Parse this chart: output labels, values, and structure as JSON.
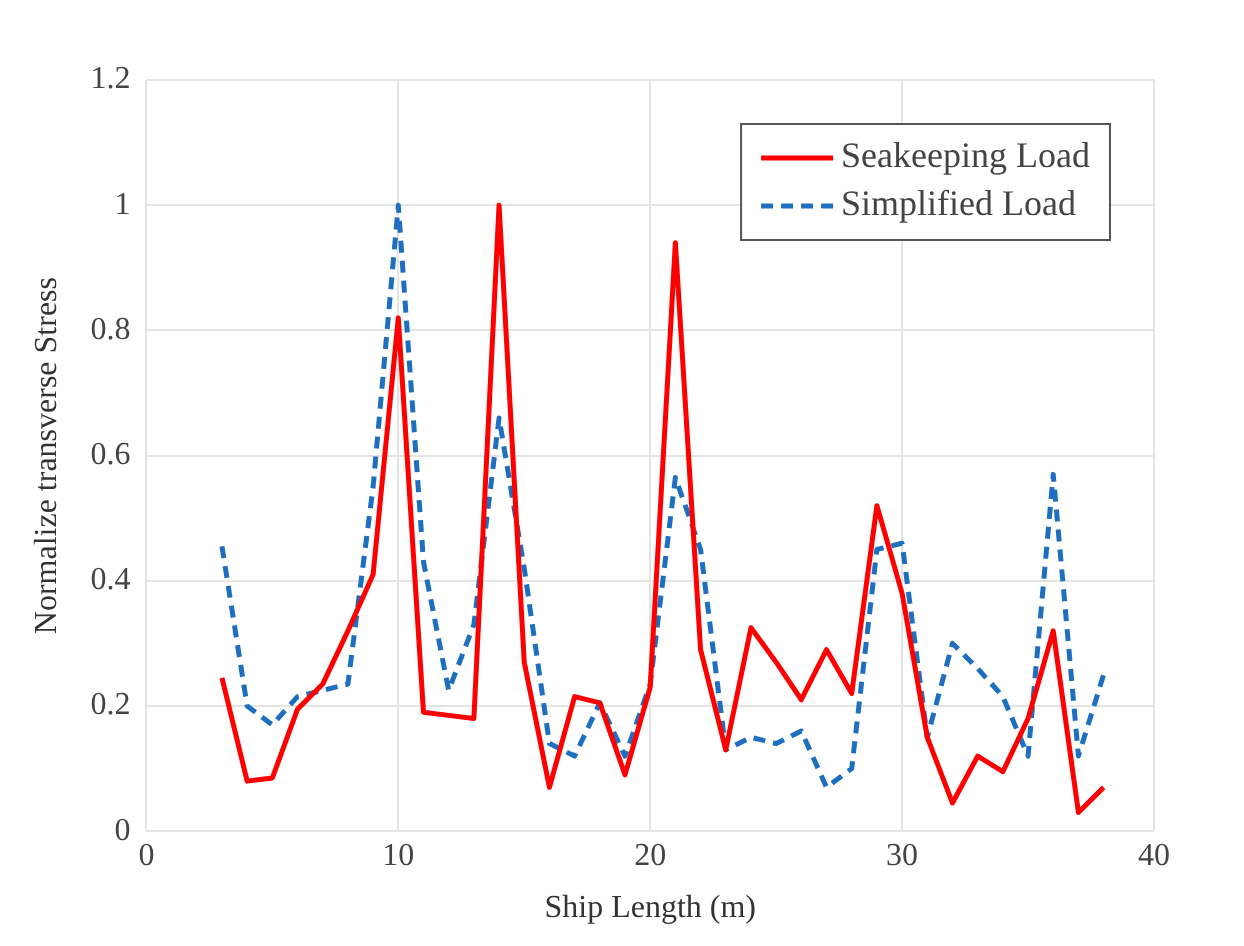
{
  "chart_data": {
    "type": "line",
    "xlabel": "Ship Length (m)",
    "ylabel": "Normalize transverse Stress",
    "x": [
      3,
      4,
      5,
      6,
      7,
      8,
      9,
      10,
      11,
      12,
      13,
      14,
      15,
      16,
      17,
      18,
      19,
      20,
      21,
      22,
      23,
      24,
      25,
      26,
      27,
      28,
      29,
      30,
      31,
      32,
      33,
      34,
      35,
      36,
      37,
      38
    ],
    "series": [
      {
        "name": "Seakeeping Load",
        "color": "#ff0000",
        "line_style": "solid",
        "values": [
          0.245,
          0.08,
          0.085,
          0.195,
          0.235,
          0.32,
          0.41,
          0.82,
          0.19,
          0.185,
          0.18,
          1.0,
          0.27,
          0.07,
          0.215,
          0.205,
          0.09,
          0.23,
          0.94,
          0.29,
          0.13,
          0.325,
          0.27,
          0.21,
          0.29,
          0.22,
          0.52,
          0.38,
          0.15,
          0.045,
          0.12,
          0.095,
          0.18,
          0.32,
          0.03,
          0.07
        ]
      },
      {
        "name": "Simplified Load",
        "color": "#1f6fc0",
        "line_style": "dashed",
        "values": [
          0.455,
          0.2,
          0.17,
          0.215,
          0.225,
          0.235,
          0.55,
          1.0,
          0.43,
          0.225,
          0.33,
          0.66,
          0.42,
          0.14,
          0.12,
          0.205,
          0.12,
          0.235,
          0.565,
          0.45,
          0.13,
          0.15,
          0.14,
          0.16,
          0.07,
          0.1,
          0.45,
          0.46,
          0.15,
          0.3,
          0.26,
          0.215,
          0.12,
          0.57,
          0.12,
          0.25
        ]
      }
    ],
    "xlim": [
      0,
      40
    ],
    "xticks": [
      0,
      10,
      20,
      30,
      40
    ],
    "ylim": [
      0,
      1.2
    ],
    "yticks": [
      0,
      0.2,
      0.4,
      0.6,
      0.8,
      1,
      1.2
    ],
    "grid": true,
    "legend": "top right",
    "marker": "none"
  }
}
